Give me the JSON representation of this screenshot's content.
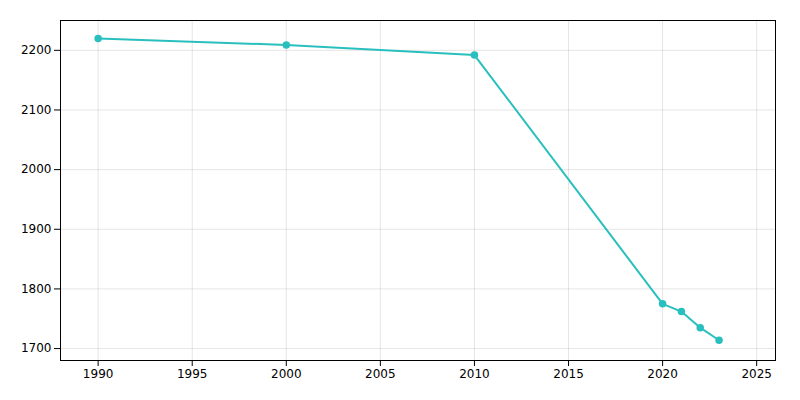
{
  "chart_data": {
    "type": "line",
    "x": [
      1990,
      2000,
      2010,
      2020,
      2021,
      2022,
      2023
    ],
    "values": [
      2220,
      2209,
      2192,
      1775,
      1762,
      1735,
      1714
    ],
    "color": "#2abfbf",
    "marker": "circle",
    "xlim": [
      1988,
      2026
    ],
    "ylim": [
      1680,
      2250
    ],
    "xticks": [
      1990,
      1995,
      2000,
      2005,
      2010,
      2015,
      2020,
      2025
    ],
    "yticks": [
      1700,
      1800,
      1900,
      2000,
      2100,
      2200
    ],
    "grid": true
  }
}
